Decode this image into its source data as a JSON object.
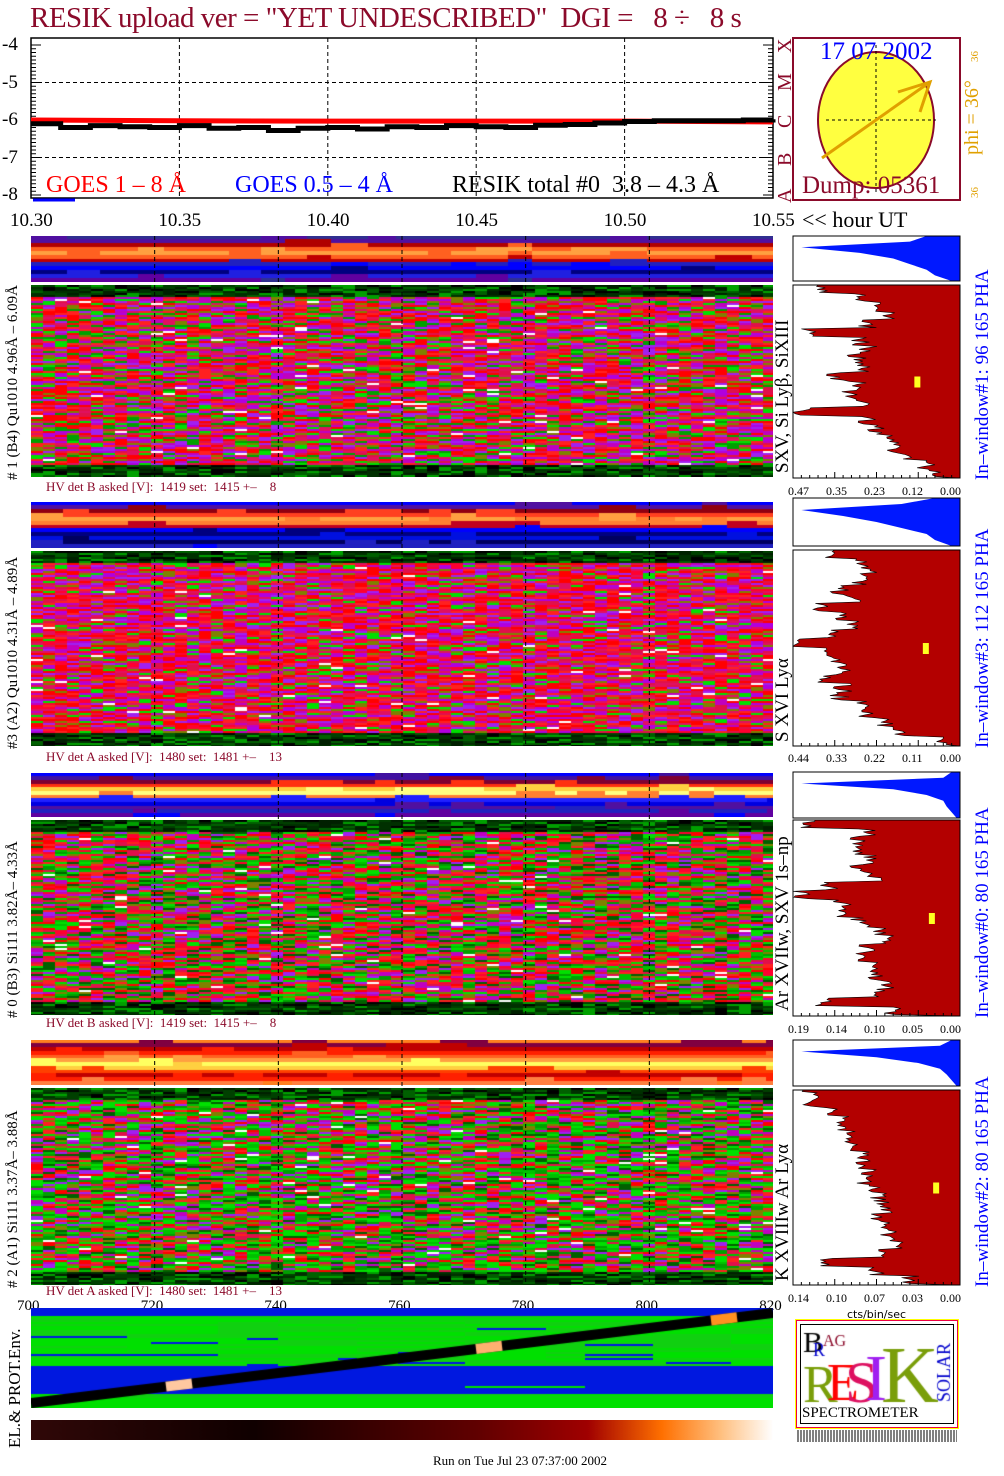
{
  "title": "RESIK upload ver = \"YET UNDESCRIBED\"  DGI =   8 ÷   8 s",
  "colors": {
    "maroon": "#8b0a2a",
    "goes_long": "#ff0000",
    "goes_short": "#0000ff",
    "resik": "#000000",
    "hist_fill": "#b30000",
    "pha_fill": "#0018ff",
    "label_blue": "#0000ff",
    "orange": "#e0a000"
  },
  "chart_data": [
    {
      "type": "line",
      "yscale": "log",
      "ylim": [
        -8,
        -4
      ],
      "yticks": [
        "-4",
        "-5",
        "-6",
        "-7",
        "-8"
      ],
      "xlim": [
        10.3,
        10.55
      ],
      "xticks": [
        "10.30",
        "10.35",
        "10.40",
        "10.45",
        "10.50",
        "10.55"
      ],
      "xlabel": "<< hour UT",
      "flare_classes": [
        "A",
        "B",
        "C",
        "M",
        "X"
      ],
      "grid": true,
      "legend": [
        "GOES 1 – 8 Å",
        "GOES 0.5 – 4 Å",
        "RESIK total #0  3.8 – 4.3 Å"
      ],
      "series": [
        {
          "name": "GOES 1 – 8 Å",
          "x": [
            10.3,
            10.35,
            10.4,
            10.45,
            10.5,
            10.55
          ],
          "y": [
            -6.0,
            -6.02,
            -6.03,
            -6.03,
            -6.03,
            -6.05
          ]
        },
        {
          "name": "RESIK total #0  3.8 – 4.3 Å",
          "x": [
            10.3,
            10.31,
            10.32,
            10.33,
            10.34,
            10.35,
            10.36,
            10.37,
            10.38,
            10.39,
            10.4,
            10.41,
            10.42,
            10.43,
            10.44,
            10.45,
            10.46,
            10.47,
            10.48,
            10.49,
            10.5,
            10.51,
            10.52,
            10.53,
            10.54,
            10.55
          ],
          "y": [
            -6.1,
            -6.2,
            -6.15,
            -6.18,
            -6.2,
            -6.15,
            -6.22,
            -6.2,
            -6.28,
            -6.22,
            -6.2,
            -6.24,
            -6.18,
            -6.2,
            -6.15,
            -6.18,
            -6.2,
            -6.14,
            -6.12,
            -6.08,
            -6.04,
            -6.02,
            -6.02,
            -6.02,
            -6.0,
            -5.98
          ]
        }
      ]
    }
  ],
  "sun": {
    "date": "17 07 2002",
    "dump": "Dump: 05361",
    "phi": "phi = 36°",
    "phi_small": "36",
    "phi_deg": 36
  },
  "time_axis": {
    "ticks": [
      "700",
      "720",
      "740",
      "760",
      "780",
      "800",
      "820"
    ],
    "range": [
      700,
      820
    ]
  },
  "panels": [
    {
      "label": "# 1 (B4) Qu1010 4.96Å – 6.09Å",
      "lines": "SXV, Si Lyβ, SiXIII",
      "hv": "HV det B asked [V]:  1419 set:  1415 +–    8",
      "window": "In–window#1:   96 165  PHA",
      "hticks": [
        "0.47",
        "0.35",
        "0.23",
        "0.12",
        "0.00"
      ],
      "profile": [
        0.85,
        0.6,
        0.5,
        0.45,
        0.55,
        0.9,
        0.6,
        0.55,
        0.62,
        0.58,
        0.75,
        0.62,
        0.65,
        0.6,
        0.95,
        0.55,
        0.5,
        0.45,
        0.4,
        0.35,
        0.2,
        0.15
      ],
      "marker": 0.12,
      "pha": [
        0.2,
        0.3,
        0.95,
        0.6,
        0.4,
        0.3,
        0.2,
        0.15,
        0.05
      ]
    },
    {
      "label": "#3 (A2) Qu1010  4.31Å – 4.89Å",
      "lines": "S XVI Lyα",
      "hv": "HV det A asked [V]:  1480 set:  1481 +–    13",
      "window": "In–window#3:   112 165  PHA",
      "hticks": [
        "0.44",
        "0.33",
        "0.22",
        "0.11",
        "0.00"
      ],
      "profile": [
        0.75,
        0.6,
        0.55,
        0.6,
        0.72,
        0.65,
        0.82,
        0.7,
        0.65,
        0.75,
        0.98,
        0.8,
        0.72,
        0.7,
        0.8,
        0.7,
        0.72,
        0.6,
        0.55,
        0.45,
        0.35,
        0.1
      ],
      "marker": 0.09,
      "pha": [
        0.15,
        0.35,
        0.95,
        0.7,
        0.5,
        0.35,
        0.2,
        0.15,
        0.05
      ]
    },
    {
      "label": "# 0 (B3) Si111  3.82Å– 4.33Å",
      "lines": "Ar XVIIw, SXV 1s–np",
      "hv": "HV det B asked [V]:  1419 set:  1415 +–    8",
      "window": "In–window#0:   80 165  PHA",
      "hticks": [
        "0.19",
        "0.14",
        "0.10",
        "0.05",
        "0.00"
      ],
      "profile": [
        0.9,
        0.55,
        0.6,
        0.6,
        0.55,
        0.6,
        0.52,
        0.78,
        0.95,
        0.7,
        0.68,
        0.6,
        0.5,
        0.45,
        0.55,
        0.6,
        0.55,
        0.5,
        0.45,
        0.5,
        0.82,
        0.4
      ],
      "marker": 0.032,
      "pha": [
        0.05,
        0.1,
        0.95,
        0.4,
        0.2,
        0.1,
        0.08,
        0.05,
        0.02
      ]
    },
    {
      "label": "# 2 (A1) Si111  3.37Å–  3.88Å",
      "lines": "K XVIIIw  Ar Lyα",
      "hv": "HV det A asked [V]:  1480 set:  1481 +–    13",
      "window": "In–window#2:   80 165  PHA",
      "hticks": [
        "0.14",
        "0.10",
        "0.07",
        "0.03",
        "0.00"
      ],
      "profile": [
        0.9,
        0.9,
        0.75,
        0.72,
        0.68,
        0.65,
        0.62,
        0.6,
        0.6,
        0.55,
        0.58,
        0.5,
        0.48,
        0.45,
        0.48,
        0.45,
        0.42,
        0.4,
        0.45,
        0.8,
        0.5,
        0.3
      ],
      "marker": 0.02,
      "pha": [
        0.05,
        0.12,
        0.95,
        0.5,
        0.25,
        0.12,
        0.08,
        0.05,
        0.02
      ]
    }
  ],
  "hist_xlabel": "cts/bin/sec",
  "env_label": "EL.& PROT.Env.",
  "logo": {
    "bragg": "BRAGG",
    "resik": "RESIK",
    "solar": "SOLAR",
    "spectrometer": "SPECTROMETER"
  },
  "footer": "Run on Tue Jul 23 07:37:00 2002"
}
